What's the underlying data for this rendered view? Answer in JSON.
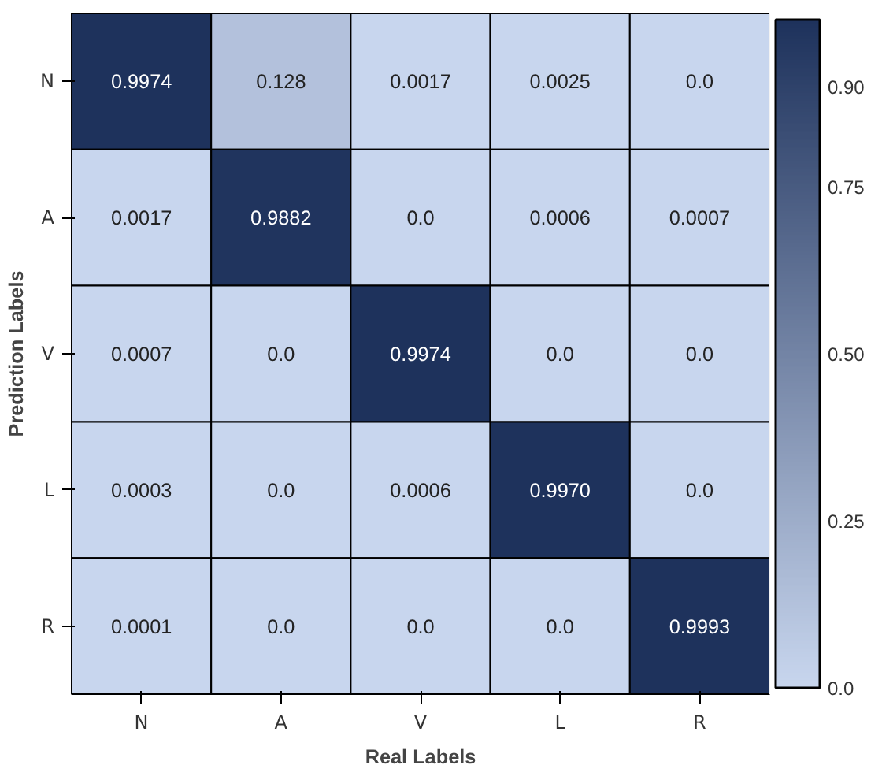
{
  "chart_data": {
    "type": "heatmap",
    "xlabel": "Real Labels",
    "ylabel": "Prediction Labels",
    "categories": [
      "N",
      "A",
      "V",
      "L",
      "R"
    ],
    "y_categories": [
      "N",
      "A",
      "V",
      "L",
      "R"
    ],
    "cells": [
      [
        0.9974,
        0.128,
        0.0017,
        0.0025,
        0.0
      ],
      [
        0.0017,
        0.9882,
        0.0,
        0.0006,
        0.0007
      ],
      [
        0.0007,
        0.0,
        0.9974,
        0.0,
        0.0
      ],
      [
        0.0003,
        0.0,
        0.0006,
        0.997,
        0.0
      ],
      [
        0.0001,
        0.0,
        0.0,
        0.0,
        0.9993
      ]
    ],
    "cell_labels": [
      [
        "0.9974",
        "0.128",
        "0.0017",
        "0.0025",
        "0.0"
      ],
      [
        "0.0017",
        "0.9882",
        "0.0",
        "0.0006",
        "0.0007"
      ],
      [
        "0.0007",
        "0.0",
        "0.9974",
        "0.0",
        "0.0"
      ],
      [
        "0.0003",
        "0.0",
        "0.0006",
        "0.9970",
        "0.0"
      ],
      [
        "0.0001",
        "0.0",
        "0.0",
        "0.0",
        "0.9993"
      ]
    ],
    "clim": [
      0,
      1.0
    ],
    "cticks": [
      {
        "value": 0.0,
        "label": "0.0"
      },
      {
        "value": 0.25,
        "label": "0.25"
      },
      {
        "value": 0.5,
        "label": "0.50"
      },
      {
        "value": 0.75,
        "label": "0.75"
      },
      {
        "value": 0.9,
        "label": "0.90"
      }
    ]
  }
}
